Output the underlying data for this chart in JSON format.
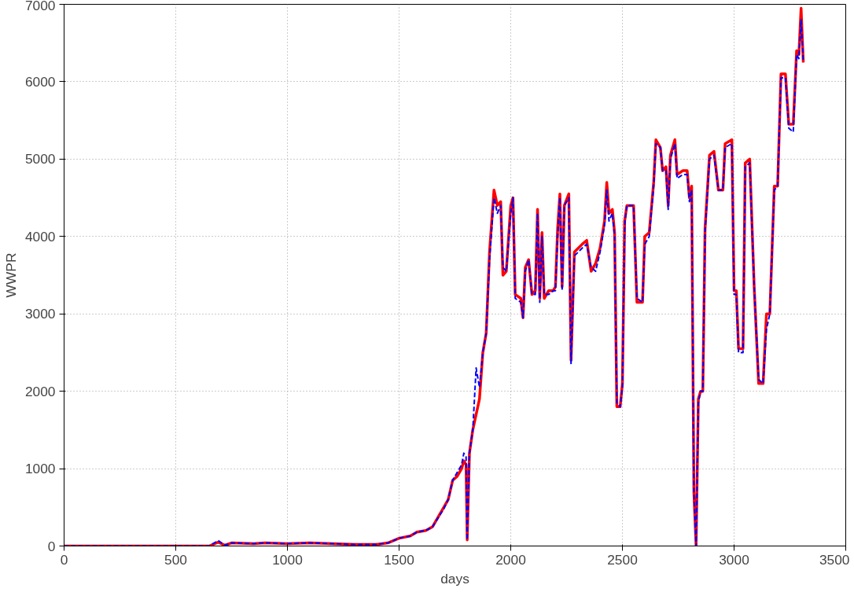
{
  "chart_data": {
    "type": "line",
    "xlabel": "days",
    "ylabel": "WWPR",
    "xlim": [
      0,
      3500
    ],
    "ylim": [
      0,
      7000
    ],
    "xticks": [
      0,
      500,
      1000,
      1500,
      2000,
      2500,
      3000,
      3500
    ],
    "yticks": [
      0,
      1000,
      2000,
      3000,
      4000,
      5000,
      6000,
      7000
    ],
    "grid": true,
    "marker": "none",
    "series": [
      {
        "color": "#ff0000",
        "line_style": "solid",
        "x": [
          0,
          650,
          690,
          720,
          750,
          850,
          900,
          1000,
          1100,
          1200,
          1300,
          1400,
          1450,
          1500,
          1550,
          1580,
          1620,
          1650,
          1700,
          1720,
          1740,
          1760,
          1780,
          1790,
          1800,
          1805,
          1815,
          1830,
          1845,
          1860,
          1875,
          1890,
          1905,
          1925,
          1940,
          1955,
          1965,
          1980,
          2000,
          2010,
          2020,
          2045,
          2055,
          2065,
          2080,
          2095,
          2110,
          2120,
          2130,
          2140,
          2150,
          2170,
          2190,
          2200,
          2210,
          2220,
          2230,
          2240,
          2260,
          2270,
          2285,
          2320,
          2340,
          2360,
          2380,
          2400,
          2420,
          2430,
          2440,
          2455,
          2465,
          2475,
          2490,
          2500,
          2510,
          2520,
          2550,
          2565,
          2590,
          2600,
          2620,
          2640,
          2650,
          2670,
          2680,
          2695,
          2705,
          2715,
          2735,
          2745,
          2770,
          2790,
          2800,
          2810,
          2820,
          2830,
          2840,
          2850,
          2860,
          2870,
          2890,
          2910,
          2930,
          2950,
          2960,
          2990,
          3000,
          3010,
          3020,
          3040,
          3050,
          3070,
          3090,
          3110,
          3130,
          3145,
          3160,
          3180,
          3195,
          3210,
          3230,
          3245,
          3265,
          3280,
          3290,
          3300,
          3310
        ],
        "values": [
          0,
          0,
          50,
          10,
          40,
          30,
          40,
          30,
          40,
          30,
          20,
          20,
          40,
          100,
          130,
          180,
          200,
          250,
          500,
          600,
          850,
          900,
          1000,
          1100,
          1050,
          80,
          1200,
          1500,
          1700,
          1900,
          2500,
          2750,
          3800,
          4600,
          4400,
          4450,
          3500,
          3550,
          4400,
          4500,
          3250,
          3200,
          2950,
          3600,
          3700,
          3250,
          3300,
          4350,
          3200,
          4050,
          3200,
          3300,
          3300,
          3350,
          4100,
          4550,
          3350,
          4400,
          4550,
          2400,
          3800,
          3900,
          3950,
          3550,
          3650,
          3850,
          4200,
          4700,
          4300,
          4350,
          4050,
          1800,
          1800,
          2100,
          4200,
          4400,
          4400,
          3150,
          3150,
          4000,
          4050,
          4700,
          5250,
          5150,
          4850,
          4900,
          4400,
          5050,
          5250,
          4800,
          4850,
          4850,
          4500,
          4650,
          700,
          0,
          1900,
          2000,
          2000,
          4100,
          5050,
          5100,
          4600,
          4600,
          5200,
          5250,
          3300,
          3300,
          2550,
          2550,
          4950,
          5000,
          3350,
          2100,
          2100,
          3000,
          3000,
          4650,
          4650,
          6100,
          6100,
          5450,
          5450,
          6400,
          6350,
          6950,
          6250
        ]
      },
      {
        "color": "#0000ff",
        "line_style": "dashed",
        "x": [
          0,
          650,
          690,
          720,
          750,
          850,
          900,
          1000,
          1100,
          1200,
          1300,
          1400,
          1450,
          1500,
          1550,
          1580,
          1620,
          1650,
          1700,
          1720,
          1740,
          1760,
          1780,
          1790,
          1800,
          1805,
          1815,
          1830,
          1845,
          1860,
          1875,
          1890,
          1905,
          1925,
          1940,
          1955,
          1965,
          1980,
          2000,
          2010,
          2020,
          2045,
          2055,
          2065,
          2080,
          2095,
          2110,
          2120,
          2130,
          2140,
          2150,
          2170,
          2190,
          2200,
          2210,
          2220,
          2230,
          2240,
          2260,
          2270,
          2285,
          2320,
          2340,
          2360,
          2380,
          2400,
          2420,
          2430,
          2440,
          2455,
          2465,
          2475,
          2490,
          2500,
          2510,
          2520,
          2550,
          2565,
          2590,
          2600,
          2620,
          2640,
          2650,
          2670,
          2680,
          2695,
          2705,
          2715,
          2735,
          2745,
          2770,
          2790,
          2800,
          2810,
          2820,
          2830,
          2840,
          2850,
          2860,
          2870,
          2890,
          2910,
          2930,
          2950,
          2960,
          2990,
          3000,
          3010,
          3020,
          3040,
          3050,
          3070,
          3090,
          3110,
          3130,
          3145,
          3160,
          3180,
          3195,
          3210,
          3230,
          3245,
          3265,
          3280,
          3290,
          3300,
          3310
        ],
        "values": [
          0,
          0,
          70,
          10,
          40,
          30,
          40,
          30,
          40,
          30,
          20,
          20,
          40,
          100,
          130,
          180,
          200,
          250,
          480,
          600,
          850,
          950,
          1050,
          1200,
          1150,
          80,
          1200,
          1500,
          2300,
          2050,
          2500,
          2750,
          3700,
          4500,
          4300,
          4400,
          3600,
          3550,
          4300,
          4500,
          3200,
          3150,
          2950,
          3550,
          3700,
          3250,
          3250,
          4300,
          3150,
          4000,
          3250,
          3250,
          3300,
          3300,
          4000,
          4500,
          3300,
          4400,
          4500,
          2350,
          3750,
          3850,
          3900,
          3600,
          3550,
          3800,
          4150,
          4600,
          4200,
          4300,
          4000,
          1850,
          1800,
          2050,
          4150,
          4400,
          4400,
          3200,
          3150,
          3900,
          4000,
          4650,
          5200,
          5150,
          4850,
          4850,
          4350,
          5000,
          5200,
          4750,
          4800,
          4800,
          4450,
          4600,
          700,
          0,
          1850,
          2000,
          2000,
          4050,
          5000,
          5050,
          4600,
          4600,
          5150,
          5200,
          3250,
          3250,
          2500,
          2500,
          4900,
          4950,
          3350,
          2150,
          2100,
          2800,
          3000,
          4600,
          4650,
          6050,
          6050,
          5400,
          5350,
          6350,
          6300,
          6800,
          6250
        ]
      }
    ]
  }
}
